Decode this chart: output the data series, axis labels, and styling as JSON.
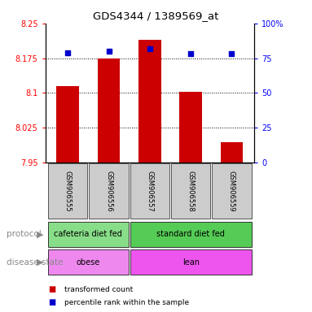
{
  "title": "GDS4344 / 1389569_at",
  "samples": [
    "GSM906555",
    "GSM906556",
    "GSM906557",
    "GSM906558",
    "GSM906559"
  ],
  "bar_values": [
    8.115,
    8.175,
    8.215,
    8.103,
    7.993
  ],
  "percentile_values": [
    79,
    80,
    82,
    78,
    78
  ],
  "ylim_left": [
    7.95,
    8.25
  ],
  "ylim_right": [
    0,
    100
  ],
  "yticks_left": [
    7.95,
    8.025,
    8.1,
    8.175,
    8.25
  ],
  "ytick_labels_left": [
    "7.95",
    "8.025",
    "8.1",
    "8.175",
    "8.25"
  ],
  "yticks_right": [
    0,
    25,
    50,
    75,
    100
  ],
  "ytick_labels_right": [
    "0",
    "25",
    "50",
    "75",
    "100%"
  ],
  "bar_color": "#cc0000",
  "dot_color": "#0000cc",
  "bar_bottom": 7.95,
  "protocol_groups": [
    {
      "label": "cafeteria diet fed",
      "start": 0,
      "end": 1,
      "color": "#88dd88"
    },
    {
      "label": "standard diet fed",
      "start": 2,
      "end": 4,
      "color": "#55dd55"
    }
  ],
  "disease_groups": [
    {
      "label": "obese",
      "start": 0,
      "end": 1,
      "color": "#dd88dd"
    },
    {
      "label": "lean",
      "start": 2,
      "end": 4,
      "color": "#ee55ee"
    }
  ],
  "legend_items": [
    {
      "label": "transformed count",
      "color": "#cc0000"
    },
    {
      "label": "percentile rank within the sample",
      "color": "#0000cc"
    }
  ],
  "protocol_label": "protocol",
  "disease_label": "disease state"
}
